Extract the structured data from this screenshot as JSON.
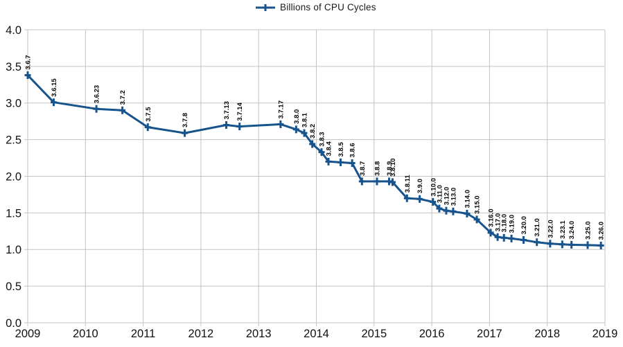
{
  "legend": {
    "label": "Billions of CPU Cycles"
  },
  "colors": {
    "line": "#17538c",
    "grid": "#c3c3c3",
    "tick_text": "#111111",
    "point_label_text": "#000000",
    "background": "#ffffff"
  },
  "chart_data": {
    "type": "line",
    "title": "",
    "legend_label": "Billions of CPU Cycles",
    "legend_position": "top-center",
    "grid": true,
    "x_axis": {
      "range": [
        2009,
        2019
      ],
      "ticks": [
        2009,
        2010,
        2011,
        2012,
        2013,
        2014,
        2015,
        2016,
        2017,
        2018,
        2019
      ]
    },
    "y_axis": {
      "range": [
        0,
        4
      ],
      "ticks": [
        0.0,
        0.5,
        1.0,
        1.5,
        2.0,
        2.5,
        3.0,
        3.5,
        4.0
      ],
      "tick_format_decimals": 1
    },
    "series": [
      {
        "name": "Billions of CPU Cycles",
        "points": [
          {
            "label": "3.6.7",
            "x": 2009.0,
            "y": 3.38
          },
          {
            "label": "3.6.15",
            "x": 2009.45,
            "y": 3.01
          },
          {
            "label": "3.6.23",
            "x": 2010.19,
            "y": 2.92
          },
          {
            "label": "3.7.2",
            "x": 2010.64,
            "y": 2.9
          },
          {
            "label": "3.7.5",
            "x": 2011.08,
            "y": 2.67
          },
          {
            "label": "3.7.8",
            "x": 2011.72,
            "y": 2.59
          },
          {
            "label": "3.7.13",
            "x": 2012.44,
            "y": 2.7
          },
          {
            "label": "3.7.14",
            "x": 2012.67,
            "y": 2.68
          },
          {
            "label": "3.7.17",
            "x": 2013.38,
            "y": 2.71
          },
          {
            "label": "3.8.0",
            "x": 2013.65,
            "y": 2.64
          },
          {
            "label": "3.8.1",
            "x": 2013.79,
            "y": 2.59
          },
          {
            "label": "3.8.2",
            "x": 2013.93,
            "y": 2.44
          },
          {
            "label": "3.8.3",
            "x": 2014.09,
            "y": 2.33
          },
          {
            "label": "3.8.4",
            "x": 2014.21,
            "y": 2.2
          },
          {
            "label": "3.8.5",
            "x": 2014.42,
            "y": 2.19
          },
          {
            "label": "3.8.6",
            "x": 2014.62,
            "y": 2.18
          },
          {
            "label": "3.8.7",
            "x": 2014.79,
            "y": 1.93
          },
          {
            "label": "3.8.8",
            "x": 2015.05,
            "y": 1.93
          },
          {
            "label": "3.8.9",
            "x": 2015.26,
            "y": 1.93
          },
          {
            "label": "3.8.10",
            "x": 2015.32,
            "y": 1.92
          },
          {
            "label": "3.8.11",
            "x": 2015.57,
            "y": 1.7
          },
          {
            "label": "3.9.0",
            "x": 2015.79,
            "y": 1.69
          },
          {
            "label": "3.10.0",
            "x": 2016.02,
            "y": 1.65
          },
          {
            "label": "3.11.0",
            "x": 2016.13,
            "y": 1.56
          },
          {
            "label": "3.12.0",
            "x": 2016.25,
            "y": 1.53
          },
          {
            "label": "3.13.0",
            "x": 2016.37,
            "y": 1.52
          },
          {
            "label": "3.14.0",
            "x": 2016.61,
            "y": 1.49
          },
          {
            "label": "3.15.0",
            "x": 2016.78,
            "y": 1.41
          },
          {
            "label": "3.16.0",
            "x": 2017.02,
            "y": 1.23
          },
          {
            "label": "3.17.0",
            "x": 2017.14,
            "y": 1.17
          },
          {
            "label": "3.18.0",
            "x": 2017.25,
            "y": 1.16
          },
          {
            "label": "3.19.0",
            "x": 2017.38,
            "y": 1.15
          },
          {
            "label": "3.20.0",
            "x": 2017.59,
            "y": 1.13
          },
          {
            "label": "3.21.0",
            "x": 2017.82,
            "y": 1.1
          },
          {
            "label": "3.22.0",
            "x": 2018.05,
            "y": 1.08
          },
          {
            "label": "3.23.1",
            "x": 2018.26,
            "y": 1.07
          },
          {
            "label": "3.24.0",
            "x": 2018.42,
            "y": 1.065
          },
          {
            "label": "3.25.0",
            "x": 2018.7,
            "y": 1.06
          },
          {
            "label": "3.26.0",
            "x": 2018.93,
            "y": 1.055
          }
        ]
      }
    ]
  }
}
